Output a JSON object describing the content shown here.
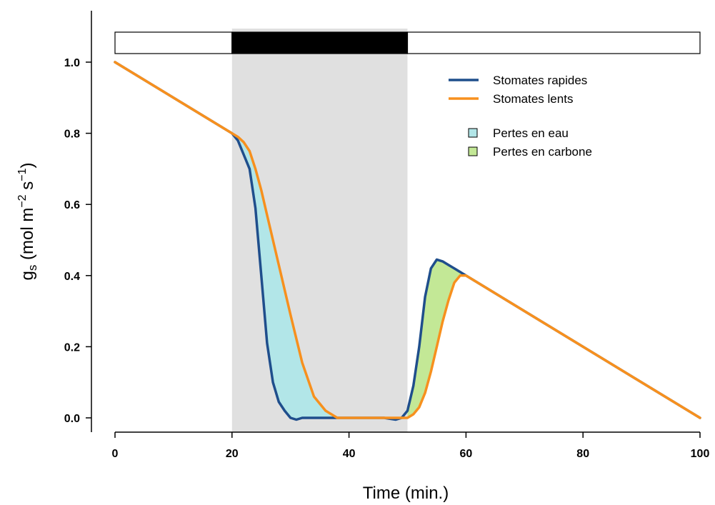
{
  "chart_data": {
    "type": "line",
    "xlabel": "Time (min.)",
    "ylabel": {
      "base": "g",
      "sub": "s",
      "open": " (mol m",
      "exp1": "−2",
      "mid": " s",
      "exp2": "−1",
      "close": ")"
    },
    "xlim": [
      0,
      100
    ],
    "ylim": [
      0,
      1.0
    ],
    "xticks": [
      "0",
      "20",
      "40",
      "60",
      "80",
      "100"
    ],
    "yticks": [
      "0.0",
      "0.2",
      "0.4",
      "0.6",
      "0.8",
      "1.0"
    ],
    "dark_period": [
      20,
      50
    ],
    "series": [
      {
        "name": "Stomates rapides",
        "color": "#1f4e8c",
        "x": [
          0,
          20,
          21,
          22,
          23,
          24,
          25,
          26,
          27,
          28,
          29,
          30,
          31,
          32,
          34,
          36,
          38,
          40,
          42,
          44,
          46,
          48,
          49,
          50,
          51,
          52,
          53,
          54,
          55,
          56,
          57,
          58,
          59,
          60,
          100
        ],
        "y": [
          1.0,
          0.8,
          0.78,
          0.74,
          0.7,
          0.59,
          0.4,
          0.21,
          0.1,
          0.045,
          0.02,
          0.0,
          -0.005,
          0.0,
          0.0,
          0.0,
          0.0,
          0.0,
          0.0,
          0.0,
          0.0,
          -0.005,
          0.0,
          0.02,
          0.09,
          0.2,
          0.34,
          0.42,
          0.445,
          0.44,
          0.43,
          0.42,
          0.41,
          0.4,
          0.0
        ]
      },
      {
        "name": "Stomates lents",
        "color": "#f7901e",
        "x": [
          0,
          20,
          21,
          22,
          23,
          24,
          25,
          26,
          27,
          28,
          30,
          32,
          34,
          36,
          38,
          40,
          42,
          44,
          46,
          48,
          50,
          51,
          52,
          53,
          54,
          55,
          56,
          57,
          58,
          59,
          60,
          100
        ],
        "y": [
          1.0,
          0.8,
          0.79,
          0.775,
          0.75,
          0.7,
          0.64,
          0.57,
          0.5,
          0.43,
          0.29,
          0.155,
          0.06,
          0.02,
          0.0,
          0.0,
          0.0,
          0.0,
          0.0,
          0.0,
          0.0,
          0.01,
          0.03,
          0.07,
          0.13,
          0.2,
          0.27,
          0.33,
          0.38,
          0.4,
          0.4,
          0.0
        ]
      }
    ],
    "areas": [
      {
        "name": "Pertes en eau",
        "color": "#b2e6e8",
        "x_range": [
          20,
          40
        ]
      },
      {
        "name": "Pertes en carbone",
        "color": "#c3e896",
        "x_range": [
          50,
          60
        ]
      }
    ],
    "legend_placement": "top-right",
    "colors": {
      "dark_band": "#e0e0e0",
      "light_bar": "#ffffff",
      "dark_bar": "#000000"
    }
  }
}
